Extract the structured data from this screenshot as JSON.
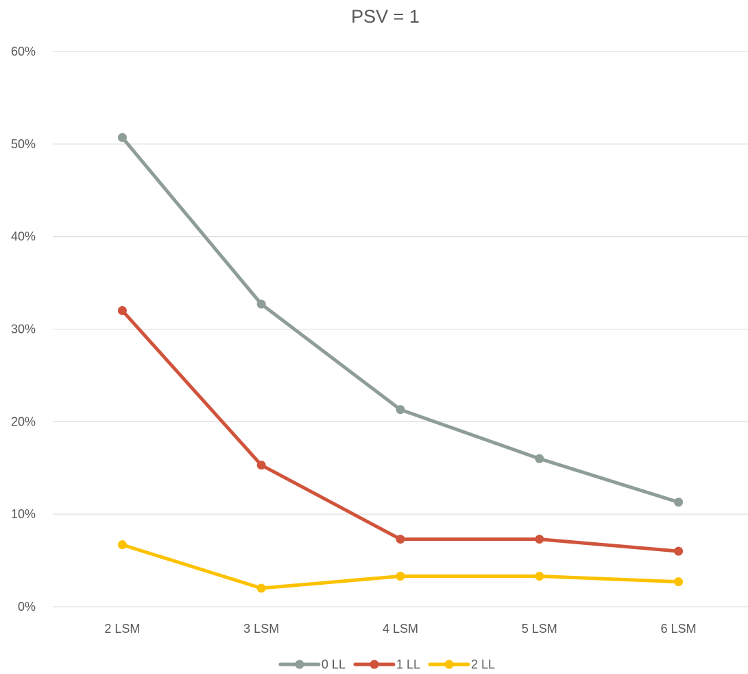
{
  "chart_data": {
    "type": "line",
    "title": "PSV = 1",
    "xlabel": "",
    "ylabel": "",
    "categories": [
      "2 LSM",
      "3 LSM",
      "4 LSM",
      "5 LSM",
      "6 LSM"
    ],
    "ylim": [
      0,
      0.6
    ],
    "yticks": [
      0,
      0.1,
      0.2,
      0.3,
      0.4,
      0.5,
      0.6
    ],
    "ytick_labels": [
      "0%",
      "10%",
      "20%",
      "30%",
      "40%",
      "50%",
      "60%"
    ],
    "grid": true,
    "legend_position": "bottom",
    "series": [
      {
        "name": "0 LL",
        "color": "#8e9e96",
        "values": [
          0.507,
          0.327,
          0.213,
          0.16,
          0.113
        ]
      },
      {
        "name": "1 LL",
        "color": "#d0543c",
        "values": [
          0.32,
          0.153,
          0.073,
          0.073,
          0.06
        ]
      },
      {
        "name": "2 LL",
        "color": "#fcc200",
        "values": [
          0.067,
          0.02,
          0.033,
          0.033,
          0.027
        ]
      }
    ]
  }
}
